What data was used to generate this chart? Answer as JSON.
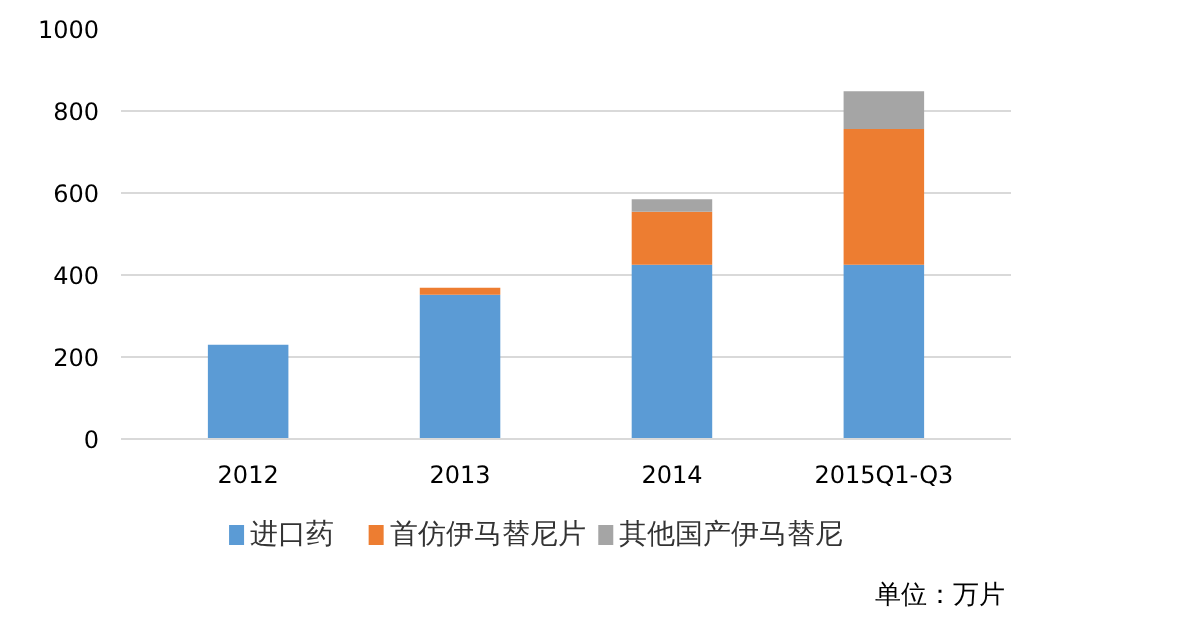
{
  "chart_data": {
    "type": "bar",
    "stacked": true,
    "categories": [
      "2012",
      "2013",
      "2014",
      "2015Q1-Q3"
    ],
    "series": [
      {
        "name": "进口药",
        "color": "#5b9bd5",
        "values": [
          230,
          352,
          425,
          425
        ]
      },
      {
        "name": "首仿伊马替尼片",
        "color": "#ed7d31",
        "values": [
          0,
          17,
          129,
          331
        ]
      },
      {
        "name": "其他国产伊马替尼",
        "color": "#a5a5a5",
        "values": [
          0,
          null,
          31,
          92
        ]
      }
    ],
    "ylim": [
      0,
      1000
    ],
    "yticks": [
      0,
      200,
      400,
      600,
      800,
      1000
    ],
    "grid": "y",
    "legend": "bottom",
    "annotations": [
      "单位：万片"
    ]
  }
}
